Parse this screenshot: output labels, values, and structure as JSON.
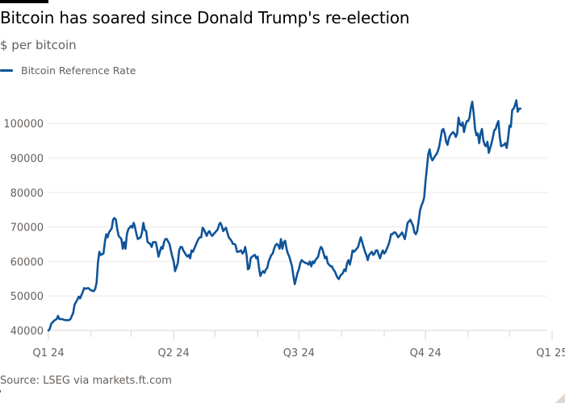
{
  "header": {
    "title": "Bitcoin has soared since Donald Trump's re-election",
    "subtitle": "$ per bitcoin"
  },
  "legend": {
    "label": "Bitcoin Reference Rate",
    "color": "#0f5499"
  },
  "footer": {
    "source": "Source: LSEG via markets.ft.com"
  },
  "colors": {
    "line": "#0f5499",
    "grid": "#ebe8e4",
    "axis": "#d9d4ce",
    "tick_text": "#66605c",
    "top_bar": "#000000"
  },
  "chart_data": {
    "type": "line",
    "title": "Bitcoin has soared since Donald Trump's re-election",
    "subtitle": "$ per bitcoin",
    "xlabel": "",
    "ylabel": "$ per bitcoin",
    "ylim": [
      40000,
      107000
    ],
    "yticks": [
      40000,
      50000,
      60000,
      70000,
      80000,
      90000,
      100000
    ],
    "xticks": [
      {
        "label": "Q1 24",
        "day": 0
      },
      {
        "label": "Q2 24",
        "day": 91
      },
      {
        "label": "Q3 24",
        "day": 182
      },
      {
        "label": "Q4 24",
        "day": 274
      },
      {
        "label": "Q1 25",
        "day": 366
      }
    ],
    "minor_xticks_day": [
      31,
      60,
      121,
      152,
      213,
      244,
      305,
      335,
      397
    ],
    "x_range_days": [
      0,
      405
    ],
    "grid": true,
    "legend_position": "top-left",
    "series": [
      {
        "name": "Bitcoin Reference Rate",
        "x_unit": "days since 2024-01-01",
        "points": [
          [
            0,
            40000
          ],
          [
            1,
            40500
          ],
          [
            2,
            41900
          ],
          [
            4,
            42800
          ],
          [
            6,
            43300
          ],
          [
            7,
            44200
          ],
          [
            8,
            43300
          ],
          [
            10,
            43300
          ],
          [
            12,
            43000
          ],
          [
            15,
            43000
          ],
          [
            16,
            43300
          ],
          [
            18,
            45100
          ],
          [
            19,
            47500
          ],
          [
            21,
            48900
          ],
          [
            22,
            49800
          ],
          [
            23,
            49300
          ],
          [
            25,
            51200
          ],
          [
            26,
            52300
          ],
          [
            27,
            52100
          ],
          [
            29,
            52300
          ],
          [
            31,
            51600
          ],
          [
            33,
            51400
          ],
          [
            34,
            52100
          ],
          [
            35,
            53900
          ],
          [
            36,
            59800
          ],
          [
            37,
            62800
          ],
          [
            38,
            61900
          ],
          [
            40,
            62300
          ],
          [
            41,
            65600
          ],
          [
            42,
            67900
          ],
          [
            43,
            67000
          ],
          [
            44,
            68400
          ],
          [
            46,
            69600
          ],
          [
            47,
            72100
          ],
          [
            48,
            72600
          ],
          [
            49,
            72100
          ],
          [
            50,
            69300
          ],
          [
            51,
            67400
          ],
          [
            53,
            66500
          ],
          [
            54,
            63700
          ],
          [
            55,
            65600
          ],
          [
            56,
            63700
          ],
          [
            57,
            67900
          ],
          [
            58,
            69300
          ],
          [
            60,
            70300
          ],
          [
            61,
            69800
          ],
          [
            62,
            71200
          ],
          [
            63,
            69800
          ],
          [
            64,
            67900
          ],
          [
            65,
            66500
          ],
          [
            67,
            67000
          ],
          [
            68,
            68400
          ],
          [
            69,
            71200
          ],
          [
            70,
            69100
          ],
          [
            71,
            68800
          ],
          [
            72,
            65600
          ],
          [
            74,
            65100
          ],
          [
            75,
            64200
          ],
          [
            76,
            65600
          ],
          [
            78,
            65600
          ],
          [
            79,
            63700
          ],
          [
            80,
            61400
          ],
          [
            81,
            62800
          ],
          [
            82,
            64200
          ],
          [
            83,
            63700
          ],
          [
            84,
            65600
          ],
          [
            85,
            66500
          ],
          [
            86,
            66500
          ],
          [
            88,
            65100
          ],
          [
            89,
            63200
          ],
          [
            90,
            61400
          ],
          [
            91,
            60000
          ],
          [
            92,
            57200
          ],
          [
            94,
            59500
          ],
          [
            95,
            63200
          ],
          [
            96,
            64200
          ],
          [
            97,
            64200
          ],
          [
            98,
            63200
          ],
          [
            100,
            61900
          ],
          [
            101,
            61400
          ],
          [
            102,
            61900
          ],
          [
            103,
            60900
          ],
          [
            104,
            63200
          ],
          [
            105,
            62800
          ],
          [
            108,
            65600
          ],
          [
            109,
            66500
          ],
          [
            110,
            67000
          ],
          [
            111,
            67000
          ],
          [
            112,
            69800
          ],
          [
            113,
            69300
          ],
          [
            115,
            67400
          ],
          [
            116,
            68400
          ],
          [
            117,
            68800
          ],
          [
            118,
            67900
          ],
          [
            119,
            67400
          ],
          [
            120,
            67900
          ],
          [
            122,
            68800
          ],
          [
            123,
            69300
          ],
          [
            124,
            70700
          ],
          [
            125,
            71200
          ],
          [
            126,
            70300
          ],
          [
            127,
            68800
          ],
          [
            129,
            69800
          ],
          [
            130,
            68400
          ],
          [
            131,
            67000
          ],
          [
            132,
            66500
          ],
          [
            133,
            66000
          ],
          [
            134,
            65100
          ],
          [
            135,
            65100
          ],
          [
            136,
            64700
          ],
          [
            137,
            62800
          ],
          [
            138,
            62800
          ],
          [
            140,
            63200
          ],
          [
            141,
            62300
          ],
          [
            142,
            62800
          ],
          [
            143,
            64200
          ],
          [
            144,
            61900
          ],
          [
            145,
            57700
          ],
          [
            146,
            58100
          ],
          [
            147,
            60900
          ],
          [
            148,
            61400
          ],
          [
            150,
            61900
          ],
          [
            151,
            60900
          ],
          [
            152,
            61400
          ],
          [
            153,
            58100
          ],
          [
            154,
            55800
          ],
          [
            155,
            56700
          ],
          [
            156,
            57200
          ],
          [
            157,
            56700
          ],
          [
            158,
            57700
          ],
          [
            159,
            58100
          ],
          [
            160,
            60000
          ],
          [
            162,
            61900
          ],
          [
            163,
            62300
          ],
          [
            164,
            63700
          ],
          [
            165,
            64700
          ],
          [
            166,
            65100
          ],
          [
            167,
            64700
          ],
          [
            168,
            63700
          ],
          [
            169,
            66500
          ],
          [
            170,
            63700
          ],
          [
            171,
            65600
          ],
          [
            172,
            66000
          ],
          [
            173,
            63700
          ],
          [
            174,
            62300
          ],
          [
            175,
            61400
          ],
          [
            176,
            60000
          ],
          [
            177,
            58600
          ],
          [
            178,
            55800
          ],
          [
            179,
            53400
          ],
          [
            181,
            56700
          ],
          [
            182,
            57700
          ],
          [
            183,
            59500
          ],
          [
            184,
            60400
          ],
          [
            185,
            60000
          ],
          [
            187,
            59500
          ],
          [
            188,
            59500
          ],
          [
            189,
            59100
          ],
          [
            190,
            60000
          ],
          [
            191,
            58600
          ],
          [
            192,
            60000
          ],
          [
            193,
            59500
          ],
          [
            194,
            60400
          ],
          [
            196,
            61400
          ],
          [
            197,
            63200
          ],
          [
            198,
            64200
          ],
          [
            199,
            63700
          ],
          [
            200,
            62300
          ],
          [
            201,
            60900
          ],
          [
            202,
            61400
          ],
          [
            203,
            59500
          ],
          [
            205,
            58600
          ],
          [
            206,
            58600
          ],
          [
            207,
            57700
          ],
          [
            208,
            57200
          ],
          [
            209,
            56300
          ],
          [
            210,
            55300
          ],
          [
            211,
            54900
          ],
          [
            212,
            55800
          ],
          [
            214,
            56700
          ],
          [
            215,
            57700
          ],
          [
            216,
            57200
          ],
          [
            217,
            59500
          ],
          [
            218,
            60400
          ],
          [
            219,
            59100
          ],
          [
            220,
            60900
          ],
          [
            221,
            63200
          ],
          [
            222,
            62800
          ],
          [
            223,
            63200
          ],
          [
            225,
            64200
          ],
          [
            226,
            65600
          ],
          [
            227,
            67000
          ],
          [
            228,
            65600
          ],
          [
            229,
            64200
          ],
          [
            230,
            62800
          ],
          [
            231,
            61900
          ],
          [
            232,
            60400
          ],
          [
            233,
            61900
          ],
          [
            235,
            62800
          ],
          [
            236,
            61900
          ],
          [
            237,
            62300
          ],
          [
            238,
            63200
          ],
          [
            239,
            63200
          ],
          [
            240,
            61900
          ],
          [
            241,
            60900
          ],
          [
            242,
            62300
          ],
          [
            243,
            63200
          ],
          [
            244,
            62300
          ],
          [
            245,
            62800
          ],
          [
            247,
            64700
          ],
          [
            248,
            66000
          ],
          [
            249,
            67900
          ],
          [
            250,
            67900
          ],
          [
            251,
            68400
          ],
          [
            252,
            68400
          ],
          [
            253,
            67900
          ],
          [
            254,
            67000
          ],
          [
            255,
            67400
          ],
          [
            257,
            68400
          ],
          [
            258,
            67400
          ],
          [
            259,
            66500
          ],
          [
            260,
            68800
          ],
          [
            261,
            71200
          ],
          [
            263,
            72100
          ],
          [
            264,
            71200
          ],
          [
            265,
            70300
          ],
          [
            266,
            68400
          ],
          [
            267,
            67900
          ],
          [
            268,
            68800
          ],
          [
            269,
            71600
          ],
          [
            270,
            74800
          ],
          [
            271,
            76200
          ],
          [
            272,
            77100
          ],
          [
            273,
            78500
          ],
          [
            274,
            83200
          ],
          [
            276,
            91100
          ],
          [
            277,
            92500
          ],
          [
            278,
            90200
          ],
          [
            279,
            89300
          ],
          [
            281,
            90600
          ],
          [
            282,
            91100
          ],
          [
            283,
            92000
          ],
          [
            284,
            93400
          ],
          [
            285,
            95700
          ],
          [
            286,
            98000
          ],
          [
            287,
            98400
          ],
          [
            288,
            97100
          ],
          [
            289,
            94700
          ],
          [
            290,
            93800
          ],
          [
            291,
            95700
          ],
          [
            292,
            96600
          ],
          [
            294,
            97500
          ],
          [
            295,
            97100
          ],
          [
            296,
            96100
          ],
          [
            297,
            97100
          ],
          [
            298,
            101700
          ],
          [
            299,
            99800
          ],
          [
            300,
            99400
          ],
          [
            301,
            100300
          ],
          [
            302,
            97500
          ],
          [
            303,
            99400
          ],
          [
            304,
            100700
          ],
          [
            305,
            100700
          ],
          [
            306,
            101700
          ],
          [
            307,
            104500
          ],
          [
            308,
            106300
          ],
          [
            309,
            103100
          ],
          [
            310,
            98400
          ],
          [
            311,
            96600
          ],
          [
            312,
            97100
          ],
          [
            313,
            94300
          ],
          [
            314,
            97100
          ],
          [
            315,
            98400
          ],
          [
            316,
            95200
          ],
          [
            317,
            93800
          ],
          [
            318,
            93400
          ],
          [
            319,
            94700
          ],
          [
            320,
            91500
          ],
          [
            322,
            94300
          ],
          [
            323,
            96100
          ],
          [
            324,
            98000
          ],
          [
            325,
            98400
          ],
          [
            326,
            99800
          ],
          [
            327,
            100700
          ],
          [
            328,
            96100
          ],
          [
            329,
            93400
          ],
          [
            331,
            93800
          ],
          [
            332,
            94300
          ],
          [
            333,
            92900
          ],
          [
            334,
            95700
          ],
          [
            335,
            99400
          ],
          [
            336,
            99000
          ],
          [
            337,
            103900
          ],
          [
            338,
            104300
          ],
          [
            339,
            105300
          ],
          [
            340,
            106700
          ],
          [
            341,
            103400
          ],
          [
            342,
            104300
          ],
          [
            343,
            104300
          ]
        ]
      }
    ]
  }
}
